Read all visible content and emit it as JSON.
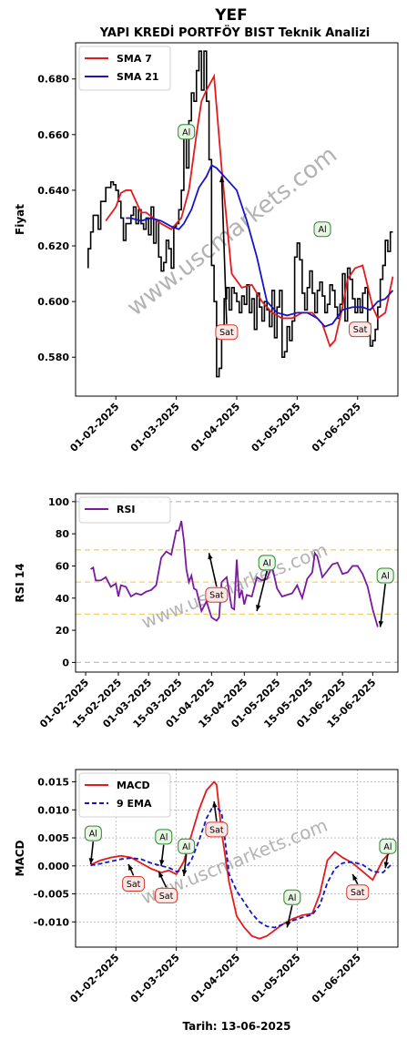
{
  "figure": {
    "title": "YEF",
    "subtitle": "YAPI KREDİ PORTFÖY BIST Teknik Analizi",
    "xlabel": "Tarih: 13-06-2025",
    "watermark": "www.uscmarkets.com"
  },
  "chart_data": [
    {
      "type": "line",
      "id": "price",
      "ylabel": "Fiyat",
      "ylim": [
        0.566,
        0.693
      ],
      "yticks": [
        0.58,
        0.6,
        0.62,
        0.64,
        0.66,
        0.68
      ],
      "ytick_labels": [
        "0.580",
        "0.600",
        "0.620",
        "0.640",
        "0.660",
        "0.680"
      ],
      "xlim": [
        0,
        128
      ],
      "xticks": [
        16,
        40,
        64,
        88,
        112
      ],
      "xtick_labels": [
        "01-02-2025",
        "01-03-2025",
        "01-04-2025",
        "01-05-2025",
        "01-06-2025"
      ],
      "legend": "top-left",
      "colors": {
        "price": "#000000",
        "sma7": "#e41a1c",
        "sma21": "#1515c8"
      },
      "series": [
        {
          "name": "SMA 7",
          "color": "#e41a1c",
          "x": [
            12,
            16,
            18,
            20,
            22,
            26,
            28,
            31,
            34,
            38,
            42,
            45,
            48,
            50,
            52,
            55,
            58,
            62,
            66,
            70,
            74,
            78,
            82,
            86,
            90,
            94,
            98,
            101,
            103,
            106,
            108,
            111,
            114,
            118,
            120,
            123,
            126
          ],
          "values": [
            0.629,
            0.634,
            0.639,
            0.64,
            0.64,
            0.632,
            0.632,
            0.63,
            0.628,
            0.626,
            0.63,
            0.64,
            0.66,
            0.672,
            0.676,
            0.681,
            0.648,
            0.61,
            0.605,
            0.606,
            0.6,
            0.596,
            0.594,
            0.594,
            0.596,
            0.596,
            0.592,
            0.584,
            0.586,
            0.598,
            0.608,
            0.612,
            0.613,
            0.598,
            0.594,
            0.596,
            0.609
          ]
        },
        {
          "name": "SMA 21",
          "color": "#1515c8",
          "x": [
            20,
            22,
            26,
            30,
            34,
            38,
            41,
            43,
            46,
            49,
            52,
            54,
            56,
            60,
            64,
            68,
            72,
            76,
            80,
            84,
            88,
            92,
            96,
            99,
            102,
            106,
            110,
            114,
            117,
            120,
            123,
            126
          ],
          "values": [
            0.63,
            0.63,
            0.629,
            0.63,
            0.629,
            0.627,
            0.626,
            0.628,
            0.633,
            0.641,
            0.645,
            0.649,
            0.648,
            0.644,
            0.64,
            0.629,
            0.616,
            0.6,
            0.596,
            0.595,
            0.596,
            0.596,
            0.594,
            0.591,
            0.592,
            0.597,
            0.598,
            0.598,
            0.597,
            0.6,
            0.601,
            0.604
          ]
        }
      ],
      "price_path": {
        "x": [
          5,
          6,
          7,
          9,
          10,
          12,
          14,
          15,
          16,
          17,
          18,
          19,
          20,
          22,
          23,
          24,
          25,
          26,
          27,
          28,
          29,
          30,
          31,
          32,
          33,
          34,
          35,
          36,
          37,
          38,
          39,
          40,
          41,
          42,
          43,
          44,
          45,
          46,
          47,
          48,
          49,
          50,
          51,
          52,
          53,
          54,
          55,
          56,
          57,
          58,
          59,
          60,
          61,
          62,
          63,
          64,
          65,
          66,
          67,
          68,
          69,
          70,
          71,
          72,
          73,
          74,
          75,
          76,
          77,
          78,
          79,
          80,
          81,
          82,
          83,
          84,
          85,
          86,
          87,
          88,
          89,
          90,
          91,
          92,
          93,
          94,
          95,
          96,
          97,
          98,
          99,
          100,
          101,
          102,
          103,
          104,
          105,
          106,
          107,
          108,
          109,
          110,
          111,
          112,
          113,
          114,
          115,
          116,
          117,
          118,
          119,
          120,
          121,
          122,
          123,
          124,
          125,
          126
        ],
        "values": [
          0.612,
          0.619,
          0.625,
          0.631,
          0.626,
          0.636,
          0.641,
          0.643,
          0.642,
          0.64,
          0.636,
          0.63,
          0.622,
          0.628,
          0.631,
          0.634,
          0.628,
          0.633,
          0.628,
          0.626,
          0.63,
          0.624,
          0.634,
          0.621,
          0.629,
          0.616,
          0.611,
          0.614,
          0.622,
          0.619,
          0.612,
          0.627,
          0.628,
          0.633,
          0.64,
          0.66,
          0.648,
          0.665,
          0.675,
          0.672,
          0.683,
          0.69,
          0.676,
          0.69,
          0.672,
          0.651,
          0.613,
          0.6,
          0.573,
          0.576,
          0.59,
          0.601,
          0.605,
          0.597,
          0.605,
          0.603,
          0.6,
          0.596,
          0.602,
          0.599,
          0.606,
          0.596,
          0.601,
          0.59,
          0.603,
          0.598,
          0.593,
          0.6,
          0.597,
          0.591,
          0.604,
          0.587,
          0.598,
          0.604,
          0.58,
          0.582,
          0.591,
          0.586,
          0.593,
          0.616,
          0.621,
          0.615,
          0.603,
          0.597,
          0.605,
          0.611,
          0.603,
          0.596,
          0.604,
          0.607,
          0.602,
          0.596,
          0.599,
          0.606,
          0.604,
          0.598,
          0.594,
          0.599,
          0.61,
          0.593,
          0.612,
          0.608,
          0.601,
          0.596,
          0.601,
          0.596,
          0.603,
          0.605,
          0.592,
          0.584,
          0.586,
          0.59,
          0.598,
          0.608,
          0.613,
          0.622,
          0.618,
          0.625
        ]
      },
      "annotations": [
        {
          "text": "Al",
          "x": 44,
          "y": 0.661,
          "tx": 44,
          "ty": 0.661
        },
        {
          "text": "Sat",
          "x": 60,
          "y": 0.589,
          "tx": 58,
          "ty": 0.645
        },
        {
          "text": "Al",
          "x": 98,
          "y": 0.626,
          "tx": 98,
          "ty": 0.626
        },
        {
          "text": "Sat",
          "x": 113,
          "y": 0.59,
          "tx": 113,
          "ty": 0.59
        }
      ]
    },
    {
      "type": "line",
      "id": "rsi",
      "ylabel": "RSI 14",
      "ylim": [
        -6,
        105
      ],
      "yticks": [
        0,
        20,
        40,
        60,
        80,
        100
      ],
      "ytick_labels": [
        "0",
        "20",
        "40",
        "60",
        "80",
        "100"
      ],
      "xlim": [
        0,
        128
      ],
      "xticks": [
        4,
        17,
        29,
        41,
        54,
        67,
        80,
        93,
        106,
        118
      ],
      "xtick_labels": [
        "01-02-2025",
        "15-02-2025",
        "01-03-2025",
        "15-03-2025",
        "01-04-2025",
        "15-04-2025",
        "01-05-2025",
        "15-05-2025",
        "01-06-2025",
        "15-06-2025"
      ],
      "hlines": [
        {
          "y": 100,
          "color": "#c0c0c0"
        },
        {
          "y": 70,
          "color": "#f2d16b"
        },
        {
          "y": 50,
          "color": "#f2d16b"
        },
        {
          "y": 30,
          "color": "#f2d16b"
        },
        {
          "y": 0,
          "color": "#c0c0c0"
        }
      ],
      "legend": "top-left",
      "series": [
        {
          "name": "RSI",
          "color": "#7b1aa0",
          "x": [
            6,
            7,
            8,
            10,
            12,
            14,
            16,
            17,
            18,
            20,
            22,
            24,
            26,
            28,
            30,
            32,
            34,
            36,
            38,
            40,
            41,
            42,
            43,
            44,
            45,
            46,
            47,
            48,
            50,
            52,
            54,
            55,
            56,
            57,
            58,
            60,
            62,
            63,
            64,
            65,
            66,
            67,
            68,
            70,
            72,
            74,
            76,
            78,
            80,
            82,
            84,
            86,
            88,
            90,
            92,
            94,
            95,
            96,
            98,
            100,
            102,
            104,
            106,
            108,
            110,
            112,
            114,
            116,
            118,
            120
          ],
          "values": [
            58,
            59,
            51,
            51,
            53,
            47,
            49,
            41,
            48,
            47,
            41,
            43,
            42,
            44,
            45,
            48,
            65,
            69,
            67,
            82,
            82,
            88,
            76,
            58,
            50,
            54,
            46,
            45,
            32,
            38,
            28,
            27,
            26,
            28,
            50,
            53,
            34,
            33,
            64,
            40,
            45,
            36,
            42,
            41,
            53,
            51,
            52,
            60,
            46,
            41,
            42,
            43,
            48,
            40,
            52,
            56,
            68,
            66,
            53,
            57,
            61,
            62,
            55,
            56,
            60,
            60,
            55,
            47,
            33,
            22
          ]
        }
      ],
      "annotations": [
        {
          "text": "Sat",
          "x": 56,
          "y": 42,
          "tx": 53,
          "ty": 68
        },
        {
          "text": "Al",
          "x": 76,
          "y": 62,
          "tx": 72,
          "ty": 32
        },
        {
          "text": "Al",
          "x": 123,
          "y": 54,
          "tx": 121,
          "ty": 22
        }
      ]
    },
    {
      "type": "line",
      "id": "macd",
      "ylabel": "MACD",
      "ylim": [
        -0.0145,
        0.0172
      ],
      "yticks": [
        -0.01,
        -0.005,
        0.0,
        0.005,
        0.01,
        0.015
      ],
      "ytick_labels": [
        "-0.010",
        "-0.005",
        "0.000",
        "0.005",
        "0.010",
        "0.015"
      ],
      "xlim": [
        0,
        128
      ],
      "xticks": [
        16,
        40,
        64,
        88,
        112
      ],
      "xtick_labels": [
        "01-02-2025",
        "01-03-2025",
        "01-04-2025",
        "01-05-2025",
        "01-06-2025"
      ],
      "grid": true,
      "legend": "top-left",
      "series": [
        {
          "name": "MACD",
          "color": "#e41a1c",
          "dash": false,
          "x": [
            6,
            10,
            14,
            18,
            22,
            26,
            30,
            34,
            37,
            40,
            43,
            46,
            49,
            52,
            55,
            56,
            58,
            61,
            64,
            67,
            70,
            73,
            76,
            79,
            82,
            86,
            90,
            94,
            97,
            100,
            103,
            106,
            110,
            114,
            118,
            122,
            126
          ],
          "values": [
            0.0002,
            0.001,
            0.0015,
            0.0018,
            0.0015,
            0.0005,
            -0.0005,
            -0.0012,
            -0.0008,
            -0.0015,
            0.0008,
            0.0055,
            0.01,
            0.0135,
            0.015,
            0.0145,
            0.006,
            -0.003,
            -0.009,
            -0.011,
            -0.0125,
            -0.013,
            -0.0125,
            -0.0115,
            -0.0105,
            -0.0095,
            -0.0088,
            -0.0085,
            -0.005,
            0.001,
            0.0025,
            0.0015,
            0.0005,
            -0.001,
            -0.0025,
            0.001,
            0.003
          ]
        },
        {
          "name": "9 EMA",
          "color": "#1515c8",
          "dash": true,
          "x": [
            6,
            10,
            14,
            18,
            22,
            26,
            30,
            34,
            37,
            40,
            43,
            46,
            49,
            52,
            55,
            58,
            61,
            64,
            67,
            70,
            73,
            76,
            79,
            82,
            86,
            90,
            94,
            97,
            100,
            103,
            106,
            110,
            114,
            118,
            122,
            126
          ],
          "values": [
            0.0001,
            0.0004,
            0.0008,
            0.0012,
            0.0014,
            0.0012,
            0.0005,
            0.0,
            -0.0003,
            -0.001,
            -0.0008,
            0.001,
            0.0045,
            0.0085,
            0.011,
            0.0095,
            -0.0015,
            -0.0045,
            -0.0065,
            -0.0085,
            -0.01,
            -0.0108,
            -0.011,
            -0.0105,
            -0.0098,
            -0.0092,
            -0.0087,
            -0.007,
            -0.003,
            -0.0005,
            0.0005,
            0.0007,
            0.0002,
            -0.001,
            -0.0012,
            0.0005
          ]
        }
      ],
      "annotations": [
        {
          "text": "Al",
          "x": 7,
          "y": 0.0058,
          "tx": 6,
          "ty": 0.0003
        },
        {
          "text": "Sat",
          "x": 23,
          "y": -0.0032,
          "tx": 21,
          "ty": 0.0003
        },
        {
          "text": "Sat",
          "x": 36,
          "y": -0.0053,
          "tx": 33,
          "ty": -0.001
        },
        {
          "text": "Al",
          "x": 35,
          "y": 0.0052,
          "tx": 34,
          "ty": 0.0
        },
        {
          "text": "Al",
          "x": 44,
          "y": 0.0035,
          "tx": 43,
          "ty": -0.0018
        },
        {
          "text": "Sat",
          "x": 56,
          "y": 0.0065,
          "tx": 55,
          "ty": 0.0115
        },
        {
          "text": "Al",
          "x": 86,
          "y": -0.0056,
          "tx": 84,
          "ty": -0.011
        },
        {
          "text": "Sat",
          "x": 112,
          "y": -0.0047,
          "tx": 110,
          "ty": -0.0015
        },
        {
          "text": "Al",
          "x": 124,
          "y": 0.0035,
          "tx": 123,
          "ty": -0.0004
        }
      ]
    }
  ]
}
